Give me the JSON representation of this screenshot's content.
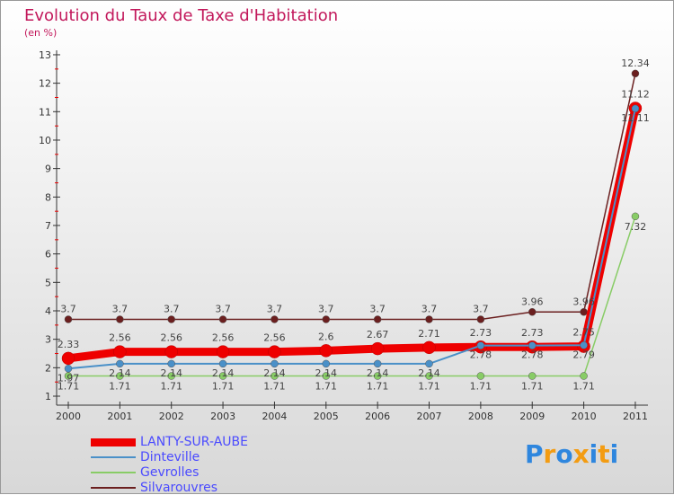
{
  "chart_data": {
    "type": "line",
    "title": "Evolution du Taux de Taxe d'Habitation",
    "ylabel": "(en %)",
    "x": [
      "2000",
      "2001",
      "2002",
      "2003",
      "2004",
      "2005",
      "2006",
      "2007",
      "2008",
      "2009",
      "2010",
      "2011"
    ],
    "yticks": [
      "1",
      "2",
      "3",
      "4",
      "5",
      "6",
      "7",
      "8",
      "9",
      "10",
      "11",
      "12",
      "13"
    ],
    "ylim": [
      1,
      13
    ],
    "series": [
      {
        "name": "LANTY-SUR-AUBE",
        "color": "#ee0000",
        "values": [
          2.33,
          2.56,
          2.56,
          2.56,
          2.56,
          2.6,
          2.67,
          2.71,
          2.73,
          2.73,
          2.75,
          11.12
        ],
        "labels": [
          "2.33",
          "2.56",
          "2.56",
          "2.56",
          "2.56",
          "2.6",
          "2.67",
          "2.71",
          "2.73",
          "2.73",
          "2.75",
          "11.12"
        ]
      },
      {
        "name": "Dinteville",
        "color": "#4a90c8",
        "values": [
          1.97,
          2.14,
          2.14,
          2.14,
          2.14,
          2.14,
          2.14,
          2.14,
          2.78,
          2.78,
          2.79,
          11.11
        ],
        "labels": [
          "1.97",
          "2.14",
          "2.14",
          "2.14",
          "2.14",
          "2.14",
          "2.14",
          "2.14",
          "2.78",
          "2.78",
          "2.79",
          "11.11"
        ]
      },
      {
        "name": "Gevrolles",
        "color": "#88cc66",
        "values": [
          1.71,
          1.71,
          1.71,
          1.71,
          1.71,
          1.71,
          1.71,
          1.71,
          1.71,
          1.71,
          1.71,
          7.32
        ],
        "labels": [
          "1.71",
          "1.71",
          "1.71",
          "1.71",
          "1.71",
          "1.71",
          "1.71",
          "1.71",
          "1.71",
          "1.71",
          "1.71",
          "7.32"
        ]
      },
      {
        "name": "Silvarouvres",
        "color": "#6b1f1f",
        "values": [
          3.7,
          3.7,
          3.7,
          3.7,
          3.7,
          3.7,
          3.7,
          3.7,
          3.7,
          3.96,
          3.96,
          12.34
        ],
        "labels": [
          "3.7",
          "3.7",
          "3.7",
          "3.7",
          "3.7",
          "3.7",
          "3.7",
          "3.7",
          "3.7",
          "3.96",
          "3.96",
          "12.34"
        ]
      }
    ]
  },
  "logo": "Proxiti"
}
